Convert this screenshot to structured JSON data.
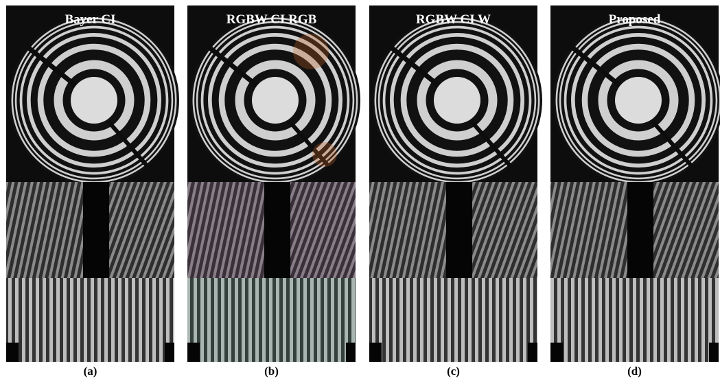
{
  "panels": [
    {
      "title": "Bayer CI",
      "caption": "(a)"
    },
    {
      "title": "RGBW CI RGB",
      "caption": "(b)"
    },
    {
      "title": "RGBW CI W",
      "caption": "(c)"
    },
    {
      "title": "Proposed",
      "caption": "(d)"
    }
  ]
}
